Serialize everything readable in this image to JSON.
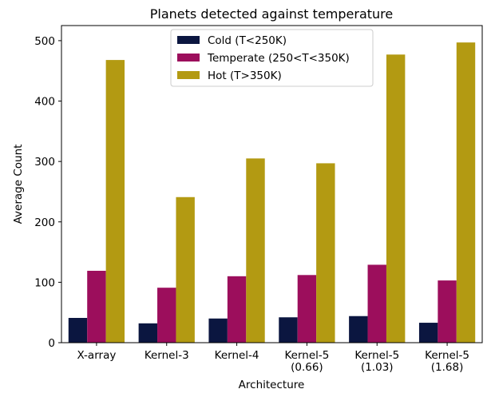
{
  "chart_data": {
    "type": "bar",
    "title": "Planets detected against temperature",
    "xlabel": "Architecture",
    "ylabel": "Average Count",
    "ylim": [
      0,
      525
    ],
    "yticks": [
      0,
      100,
      200,
      300,
      400,
      500
    ],
    "grid": false,
    "legend_placement": "top-center",
    "categories": [
      [
        "X-array"
      ],
      [
        "Kernel-3"
      ],
      [
        "Kernel-4"
      ],
      [
        "Kernel-5",
        "(0.66)"
      ],
      [
        "Kernel-5",
        "(1.03)"
      ],
      [
        "Kernel-5",
        "(1.68)"
      ]
    ],
    "series": [
      {
        "name": "Cold (T<250K)",
        "color": "#0b1640",
        "values": [
          41,
          32,
          40,
          42,
          44,
          33
        ]
      },
      {
        "name": "Temperate (250<T<350K)",
        "color": "#9c0e5c",
        "values": [
          119,
          91,
          110,
          112,
          129,
          103
        ]
      },
      {
        "name": "Hot (T>350K)",
        "color": "#b39a12",
        "values": [
          468,
          241,
          305,
          297,
          477,
          497
        ]
      }
    ]
  }
}
